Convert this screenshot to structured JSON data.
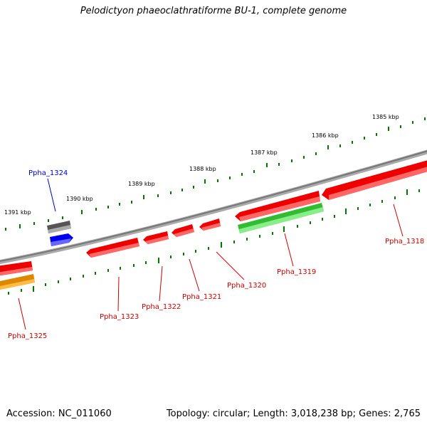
{
  "title": "Pelodictyon phaeoclathratiforme BU-1, complete genome",
  "footer": {
    "accession": "Accession: NC_011060",
    "summary": "Topology: circular; Length: 3,018,238 bp; Genes: 2,765"
  },
  "scale": {
    "tick_labels": [
      "1385 kbp",
      "1386 kbp",
      "1387 kbp",
      "1388 kbp",
      "1389 kbp",
      "1390 kbp",
      "1391 kbp"
    ]
  },
  "colors": {
    "backbone": "#888888",
    "tick": "#007700",
    "gene_red": "#ee0000",
    "gene_green": "#33bb33",
    "gene_blue": "#0000ee",
    "gene_gray": "#666666",
    "gene_orange": "#ee9900",
    "label_red": "#cc0000",
    "label_blue": "#0000cc"
  },
  "genes": [
    {
      "name": "Ppha_1318",
      "color": "red"
    },
    {
      "name": "Ppha_1319",
      "color": "green"
    },
    {
      "name": "Ppha_1320",
      "color": "red"
    },
    {
      "name": "Ppha_1321",
      "color": "red"
    },
    {
      "name": "Ppha_1322",
      "color": "red"
    },
    {
      "name": "Ppha_1323",
      "color": "red"
    },
    {
      "name": "Ppha_1324",
      "color": "blue"
    },
    {
      "name": "Ppha_1325",
      "color": "orange"
    }
  ]
}
